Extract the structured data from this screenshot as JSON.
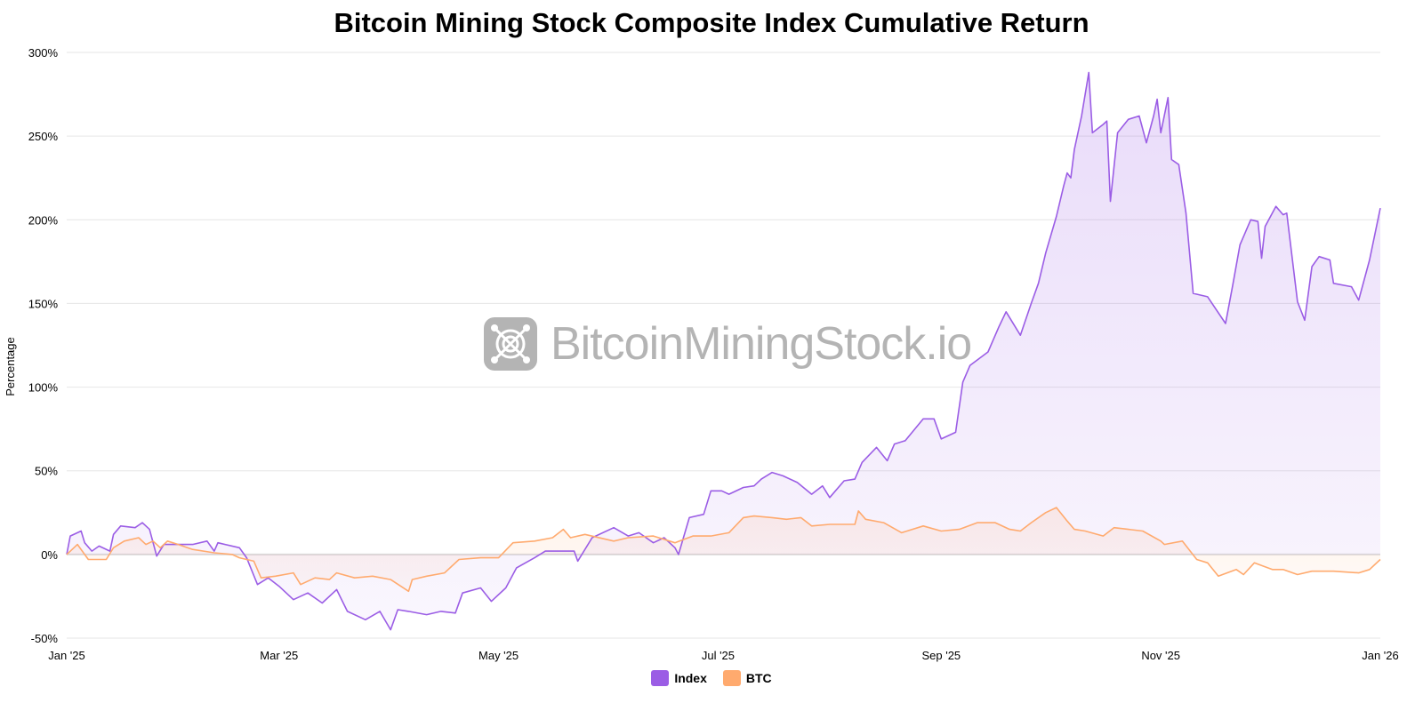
{
  "title": "Bitcoin Mining Stock Composite Index Cumulative Return",
  "watermark": "BitcoinMiningStock.io",
  "chart_data": {
    "type": "area",
    "title": "Bitcoin Mining Stock Composite Index Cumulative Return",
    "ylabel": "Percentage",
    "xlabel": "",
    "ylim": [
      -50,
      300
    ],
    "xlim": [
      "2025-01-01",
      "2026-01-01"
    ],
    "grid": true,
    "legend_position": "bottom",
    "y_ticks": [
      "300%",
      "250%",
      "200%",
      "150%",
      "100%",
      "50%",
      "0%",
      "-50%"
    ],
    "y_tick_values": [
      300,
      250,
      200,
      150,
      100,
      50,
      0,
      -50
    ],
    "x_ticks": [
      "Jan '25",
      "Mar '25",
      "May '25",
      "Jul '25",
      "Sep '25",
      "Nov '25",
      "Jan '26"
    ],
    "x_tick_dates": [
      "2025-01-01",
      "2025-03-01",
      "2025-05-01",
      "2025-07-01",
      "2025-09-01",
      "2025-11-01",
      "2026-01-01"
    ],
    "series": [
      {
        "name": "Index",
        "color": "#9b5de5",
        "points": [
          [
            "2025-01-01",
            0
          ],
          [
            "2025-01-02",
            11
          ],
          [
            "2025-01-05",
            14
          ],
          [
            "2025-01-06",
            7
          ],
          [
            "2025-01-08",
            2
          ],
          [
            "2025-01-10",
            5
          ],
          [
            "2025-01-13",
            2
          ],
          [
            "2025-01-14",
            12
          ],
          [
            "2025-01-16",
            17
          ],
          [
            "2025-01-20",
            16
          ],
          [
            "2025-01-22",
            19
          ],
          [
            "2025-01-24",
            15
          ],
          [
            "2025-01-26",
            -1
          ],
          [
            "2025-01-28",
            6
          ],
          [
            "2025-02-01",
            6
          ],
          [
            "2025-02-05",
            6
          ],
          [
            "2025-02-09",
            8
          ],
          [
            "2025-02-11",
            2
          ],
          [
            "2025-02-12",
            7
          ],
          [
            "2025-02-18",
            4
          ],
          [
            "2025-02-20",
            -2
          ],
          [
            "2025-02-23",
            -18
          ],
          [
            "2025-02-26",
            -14
          ],
          [
            "2025-03-01",
            -19
          ],
          [
            "2025-03-05",
            -27
          ],
          [
            "2025-03-09",
            -23
          ],
          [
            "2025-03-13",
            -29
          ],
          [
            "2025-03-17",
            -21
          ],
          [
            "2025-03-20",
            -34
          ],
          [
            "2025-03-25",
            -39
          ],
          [
            "2025-03-29",
            -34
          ],
          [
            "2025-04-01",
            -45
          ],
          [
            "2025-04-03",
            -33
          ],
          [
            "2025-04-06",
            -34
          ],
          [
            "2025-04-11",
            -36
          ],
          [
            "2025-04-15",
            -34
          ],
          [
            "2025-04-19",
            -35
          ],
          [
            "2025-04-21",
            -23
          ],
          [
            "2025-04-26",
            -20
          ],
          [
            "2025-04-29",
            -28
          ],
          [
            "2025-05-03",
            -20
          ],
          [
            "2025-05-06",
            -8
          ],
          [
            "2025-05-11",
            -2
          ],
          [
            "2025-05-14",
            2
          ],
          [
            "2025-05-18",
            2
          ],
          [
            "2025-05-22",
            2
          ],
          [
            "2025-05-23",
            -4
          ],
          [
            "2025-05-27",
            10
          ],
          [
            "2025-06-02",
            16
          ],
          [
            "2025-06-06",
            11
          ],
          [
            "2025-06-09",
            13
          ],
          [
            "2025-06-13",
            7
          ],
          [
            "2025-06-16",
            10
          ],
          [
            "2025-06-19",
            4
          ],
          [
            "2025-06-20",
            0
          ],
          [
            "2025-06-23",
            22
          ],
          [
            "2025-06-27",
            24
          ],
          [
            "2025-06-29",
            38
          ],
          [
            "2025-07-02",
            38
          ],
          [
            "2025-07-04",
            36
          ],
          [
            "2025-07-08",
            40
          ],
          [
            "2025-07-11",
            41
          ],
          [
            "2025-07-13",
            45
          ],
          [
            "2025-07-16",
            49
          ],
          [
            "2025-07-19",
            47
          ],
          [
            "2025-07-23",
            43
          ],
          [
            "2025-07-27",
            36
          ],
          [
            "2025-07-30",
            41
          ],
          [
            "2025-08-01",
            34
          ],
          [
            "2025-08-05",
            44
          ],
          [
            "2025-08-08",
            45
          ],
          [
            "2025-08-10",
            55
          ],
          [
            "2025-08-14",
            64
          ],
          [
            "2025-08-17",
            56
          ],
          [
            "2025-08-19",
            66
          ],
          [
            "2025-08-22",
            68
          ],
          [
            "2025-08-27",
            81
          ],
          [
            "2025-08-30",
            81
          ],
          [
            "2025-09-01",
            69
          ],
          [
            "2025-09-05",
            73
          ],
          [
            "2025-09-07",
            103
          ],
          [
            "2025-09-09",
            113
          ],
          [
            "2025-09-14",
            121
          ],
          [
            "2025-09-17",
            136
          ],
          [
            "2025-09-19",
            145
          ],
          [
            "2025-09-23",
            131
          ],
          [
            "2025-09-26",
            150
          ],
          [
            "2025-09-28",
            162
          ],
          [
            "2025-09-30",
            180
          ],
          [
            "2025-10-03",
            202
          ],
          [
            "2025-10-05",
            220
          ],
          [
            "2025-10-06",
            228
          ],
          [
            "2025-10-07",
            225
          ],
          [
            "2025-10-08",
            242
          ],
          [
            "2025-10-10",
            262
          ],
          [
            "2025-10-12",
            288
          ],
          [
            "2025-10-13",
            252
          ],
          [
            "2025-10-16",
            257
          ],
          [
            "2025-10-17",
            259
          ],
          [
            "2025-10-18",
            211
          ],
          [
            "2025-10-20",
            252
          ],
          [
            "2025-10-23",
            260
          ],
          [
            "2025-10-26",
            262
          ],
          [
            "2025-10-28",
            246
          ],
          [
            "2025-10-30",
            262
          ],
          [
            "2025-10-31",
            272
          ],
          [
            "2025-11-01",
            252
          ],
          [
            "2025-11-03",
            273
          ],
          [
            "2025-11-04",
            236
          ],
          [
            "2025-11-06",
            233
          ],
          [
            "2025-11-08",
            204
          ],
          [
            "2025-11-10",
            156
          ],
          [
            "2025-11-14",
            154
          ],
          [
            "2025-11-19",
            138
          ],
          [
            "2025-11-21",
            161
          ],
          [
            "2025-11-23",
            185
          ],
          [
            "2025-11-26",
            200
          ],
          [
            "2025-11-28",
            199
          ],
          [
            "2025-11-29",
            177
          ],
          [
            "2025-11-30",
            196
          ],
          [
            "2025-12-03",
            208
          ],
          [
            "2025-12-05",
            203
          ],
          [
            "2025-12-06",
            204
          ],
          [
            "2025-12-09",
            151
          ],
          [
            "2025-12-11",
            140
          ],
          [
            "2025-12-13",
            172
          ],
          [
            "2025-12-15",
            178
          ],
          [
            "2025-12-18",
            176
          ],
          [
            "2025-12-19",
            162
          ],
          [
            "2025-12-24",
            160
          ],
          [
            "2025-12-26",
            152
          ],
          [
            "2025-12-29",
            176
          ],
          [
            "2026-01-01",
            207
          ]
        ]
      },
      {
        "name": "BTC",
        "color": "#ffaa6e",
        "points": [
          [
            "2025-01-01",
            0
          ],
          [
            "2025-01-04",
            6
          ],
          [
            "2025-01-07",
            -3
          ],
          [
            "2025-01-12",
            -3
          ],
          [
            "2025-01-14",
            4
          ],
          [
            "2025-01-17",
            8
          ],
          [
            "2025-01-21",
            10
          ],
          [
            "2025-01-23",
            6
          ],
          [
            "2025-01-25",
            8
          ],
          [
            "2025-01-27",
            4
          ],
          [
            "2025-01-29",
            8
          ],
          [
            "2025-02-01",
            6
          ],
          [
            "2025-02-05",
            3
          ],
          [
            "2025-02-11",
            1
          ],
          [
            "2025-02-16",
            0
          ],
          [
            "2025-02-18",
            -2
          ],
          [
            "2025-02-22",
            -4
          ],
          [
            "2025-02-24",
            -14
          ],
          [
            "2025-02-28",
            -13
          ],
          [
            "2025-03-05",
            -11
          ],
          [
            "2025-03-07",
            -18
          ],
          [
            "2025-03-11",
            -14
          ],
          [
            "2025-03-15",
            -15
          ],
          [
            "2025-03-17",
            -11
          ],
          [
            "2025-03-22",
            -14
          ],
          [
            "2025-03-27",
            -13
          ],
          [
            "2025-04-01",
            -15
          ],
          [
            "2025-04-06",
            -22
          ],
          [
            "2025-04-07",
            -15
          ],
          [
            "2025-04-11",
            -13
          ],
          [
            "2025-04-16",
            -11
          ],
          [
            "2025-04-20",
            -3
          ],
          [
            "2025-04-26",
            -2
          ],
          [
            "2025-05-01",
            -2
          ],
          [
            "2025-05-05",
            7
          ],
          [
            "2025-05-11",
            8
          ],
          [
            "2025-05-16",
            10
          ],
          [
            "2025-05-19",
            15
          ],
          [
            "2025-05-21",
            10
          ],
          [
            "2025-05-25",
            12
          ],
          [
            "2025-06-02",
            8
          ],
          [
            "2025-06-06",
            10
          ],
          [
            "2025-06-13",
            11
          ],
          [
            "2025-06-19",
            7
          ],
          [
            "2025-06-24",
            11
          ],
          [
            "2025-06-29",
            11
          ],
          [
            "2025-07-04",
            13
          ],
          [
            "2025-07-08",
            22
          ],
          [
            "2025-07-11",
            23
          ],
          [
            "2025-07-16",
            22
          ],
          [
            "2025-07-20",
            21
          ],
          [
            "2025-07-24",
            22
          ],
          [
            "2025-07-27",
            17
          ],
          [
            "2025-08-01",
            18
          ],
          [
            "2025-08-08",
            18
          ],
          [
            "2025-08-09",
            26
          ],
          [
            "2025-08-11",
            21
          ],
          [
            "2025-08-16",
            19
          ],
          [
            "2025-08-21",
            13
          ],
          [
            "2025-08-27",
            17
          ],
          [
            "2025-09-01",
            14
          ],
          [
            "2025-09-06",
            15
          ],
          [
            "2025-09-11",
            19
          ],
          [
            "2025-09-16",
            19
          ],
          [
            "2025-09-20",
            15
          ],
          [
            "2025-09-23",
            14
          ],
          [
            "2025-09-26",
            19
          ],
          [
            "2025-09-30",
            25
          ],
          [
            "2025-10-03",
            28
          ],
          [
            "2025-10-06",
            20
          ],
          [
            "2025-10-08",
            15
          ],
          [
            "2025-10-11",
            14
          ],
          [
            "2025-10-16",
            11
          ],
          [
            "2025-10-19",
            16
          ],
          [
            "2025-10-23",
            15
          ],
          [
            "2025-10-27",
            14
          ],
          [
            "2025-11-01",
            8
          ],
          [
            "2025-11-02",
            6
          ],
          [
            "2025-11-07",
            8
          ],
          [
            "2025-11-11",
            -3
          ],
          [
            "2025-11-14",
            -5
          ],
          [
            "2025-11-17",
            -13
          ],
          [
            "2025-11-22",
            -9
          ],
          [
            "2025-11-24",
            -12
          ],
          [
            "2025-11-27",
            -5
          ],
          [
            "2025-12-02",
            -9
          ],
          [
            "2025-12-05",
            -9
          ],
          [
            "2025-12-09",
            -12
          ],
          [
            "2025-12-13",
            -10
          ],
          [
            "2025-12-19",
            -10
          ],
          [
            "2025-12-26",
            -11
          ],
          [
            "2025-12-29",
            -9
          ],
          [
            "2026-01-01",
            -3
          ]
        ]
      }
    ]
  }
}
